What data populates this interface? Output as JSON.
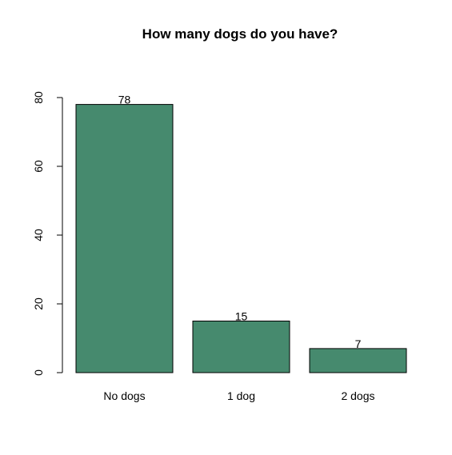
{
  "chart_data": {
    "type": "bar",
    "title": "How many dogs do you have?",
    "categories": [
      "No dogs",
      "1 dog",
      "2 dogs"
    ],
    "values": [
      78,
      15,
      7
    ],
    "data_labels": [
      "78",
      "15",
      "7"
    ],
    "ylim": [
      0,
      80
    ],
    "yticks": [
      0,
      20,
      40,
      60,
      80
    ],
    "ytick_labels": [
      "0",
      "20",
      "40",
      "60",
      "80"
    ],
    "grid": false,
    "legend": "none",
    "bar_color": "#468a6e",
    "edge_color": "#000000"
  }
}
